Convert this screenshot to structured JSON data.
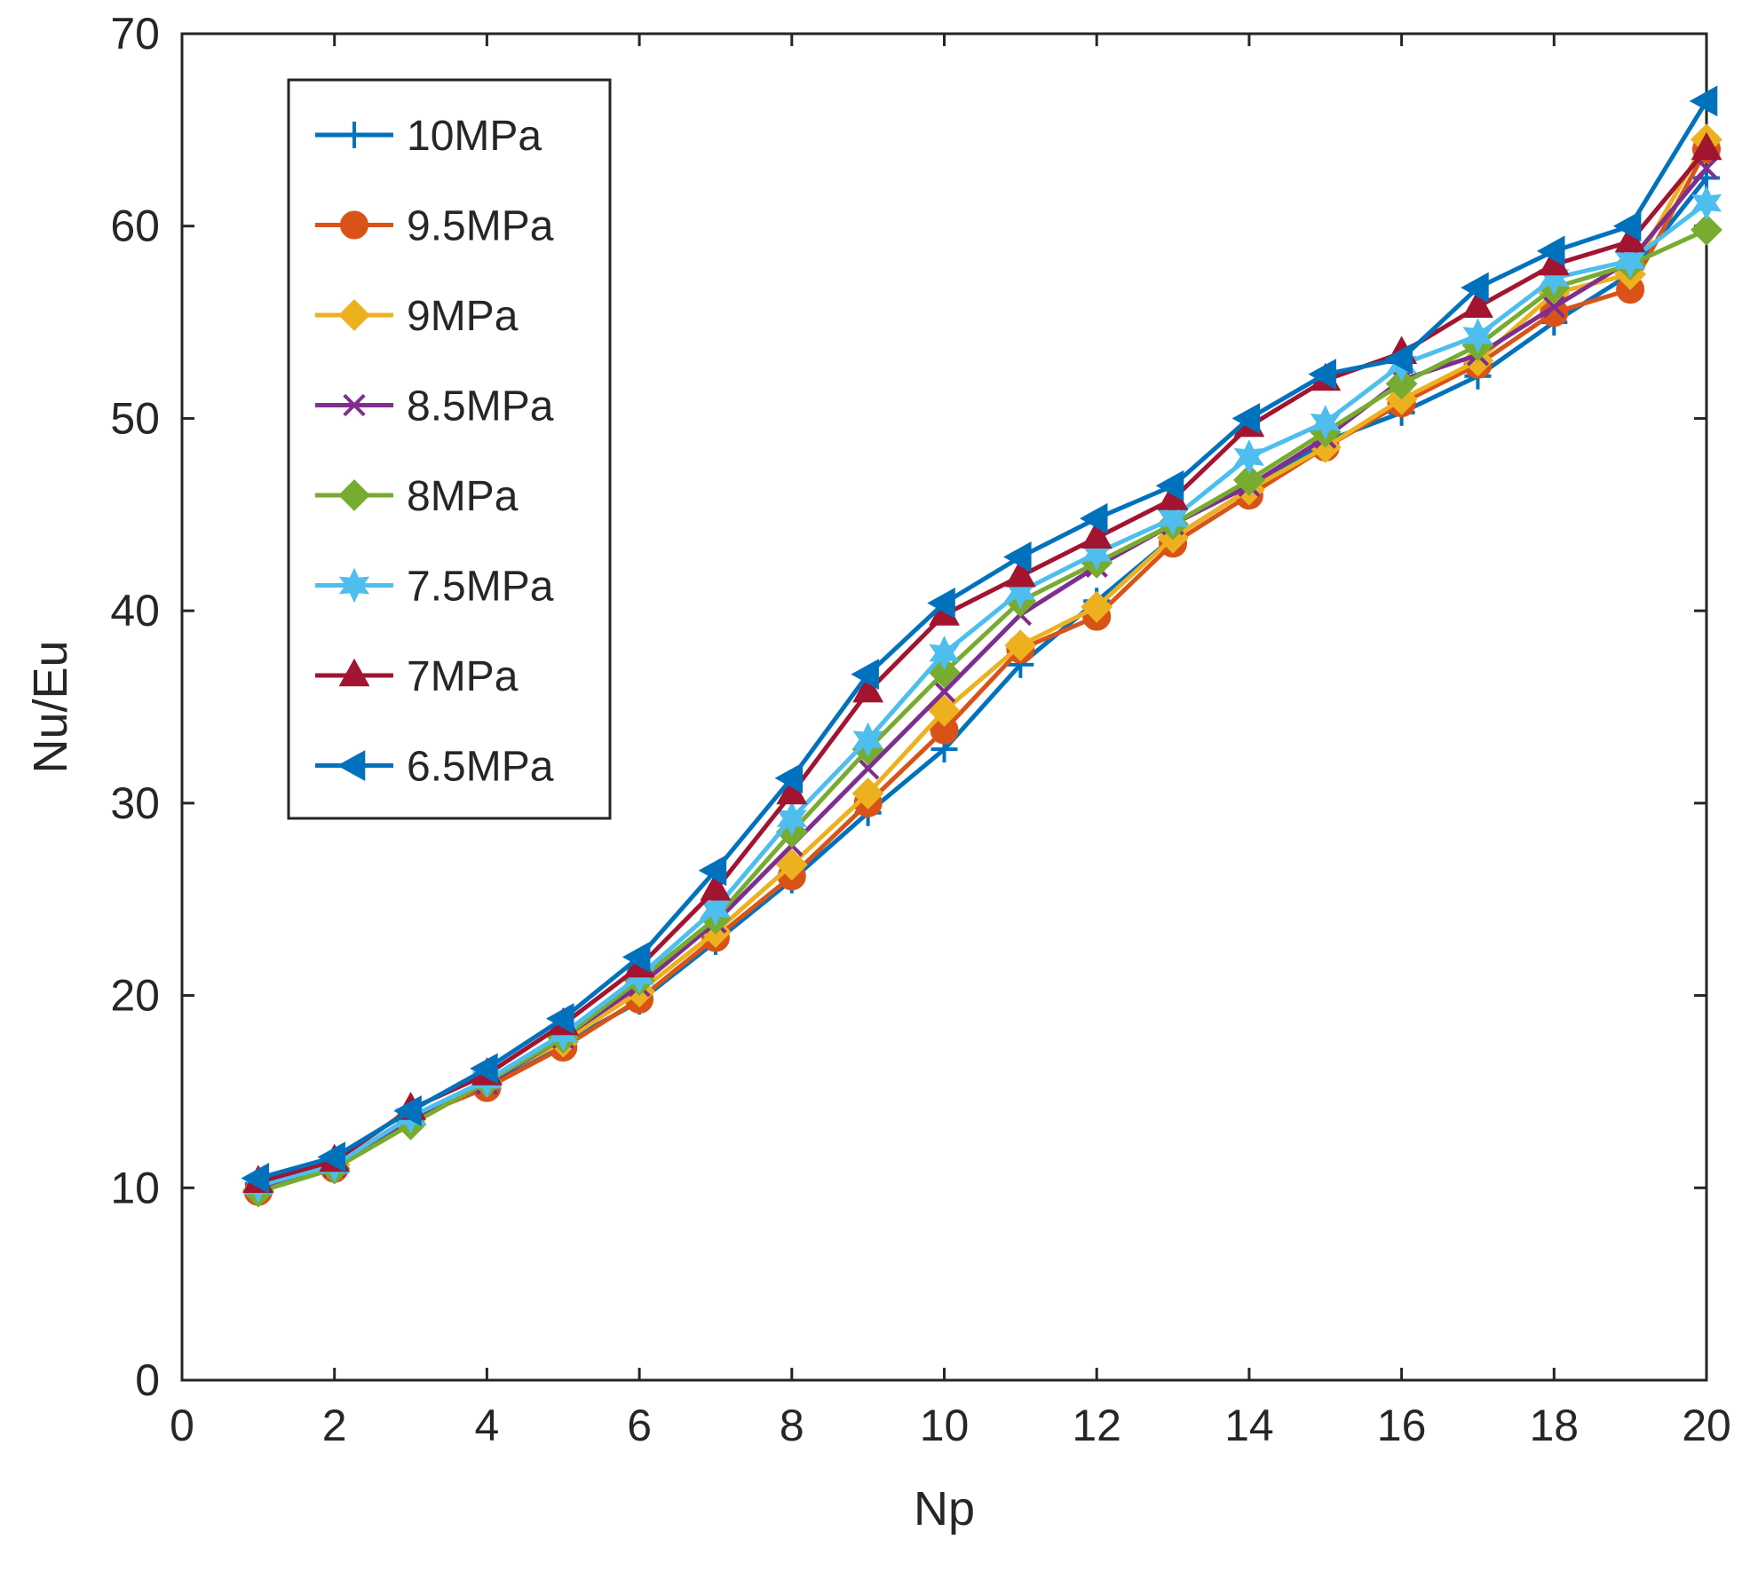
{
  "chart_data": {
    "type": "line",
    "title": "",
    "xlabel": "Np",
    "ylabel": "Nu/Eu",
    "xlim": [
      0,
      20
    ],
    "ylim": [
      0,
      70
    ],
    "xticks": [
      0,
      2,
      4,
      6,
      8,
      10,
      12,
      14,
      16,
      18,
      20
    ],
    "yticks": [
      0,
      10,
      20,
      30,
      40,
      50,
      60,
      70
    ],
    "grid": false,
    "legend_position": "top-left",
    "x": [
      1,
      2,
      3,
      4,
      5,
      6,
      7,
      8,
      9,
      10,
      11,
      12,
      13,
      14,
      15,
      16,
      17,
      18,
      19,
      20
    ],
    "series": [
      {
        "name": "10MPa",
        "color": "#0072BD",
        "marker": "plus",
        "values": [
          10.2,
          11.1,
          13.5,
          15.3,
          17.5,
          19.7,
          22.8,
          26.0,
          29.5,
          32.8,
          37.2,
          40.5,
          43.8,
          46.3,
          48.8,
          50.3,
          52.2,
          55.0,
          57.5,
          62.5
        ]
      },
      {
        "name": "9.5MPa",
        "color": "#D95319",
        "marker": "circle",
        "values": [
          9.8,
          11.0,
          13.6,
          15.2,
          17.3,
          19.8,
          23.0,
          26.2,
          30.0,
          33.8,
          38.0,
          39.7,
          43.5,
          46.0,
          48.5,
          50.8,
          52.8,
          55.5,
          56.7,
          64.0
        ]
      },
      {
        "name": "9MPa",
        "color": "#EDB120",
        "marker": "diamond",
        "values": [
          9.9,
          11.2,
          13.7,
          15.5,
          17.6,
          20.2,
          23.3,
          26.8,
          30.5,
          34.8,
          38.2,
          40.2,
          43.8,
          46.3,
          48.5,
          51.0,
          53.0,
          56.5,
          57.5,
          64.5
        ]
      },
      {
        "name": "8.5MPa",
        "color": "#7E2F8E",
        "marker": "x",
        "values": [
          10.0,
          11.1,
          13.6,
          15.4,
          17.8,
          20.5,
          23.8,
          27.8,
          31.8,
          35.8,
          39.8,
          42.3,
          44.5,
          46.5,
          49.0,
          52.0,
          53.3,
          55.8,
          58.2,
          63.0
        ]
      },
      {
        "name": "8MPa",
        "color": "#77AC30",
        "marker": "diamond",
        "values": [
          9.8,
          11.0,
          13.3,
          15.5,
          17.8,
          20.8,
          24.0,
          28.5,
          32.8,
          36.8,
          40.5,
          42.5,
          44.5,
          46.8,
          49.3,
          51.8,
          53.8,
          56.8,
          58.0,
          59.8
        ]
      },
      {
        "name": "7.5MPa",
        "color": "#4DBEEE",
        "marker": "hexagram",
        "values": [
          10.1,
          11.2,
          13.7,
          15.6,
          18.0,
          21.0,
          24.5,
          29.2,
          33.3,
          37.8,
          41.0,
          43.0,
          44.8,
          48.0,
          49.8,
          52.8,
          54.3,
          57.3,
          58.2,
          61.2
        ]
      },
      {
        "name": "7MPa",
        "color": "#A2142F",
        "marker": "triangle",
        "values": [
          10.3,
          11.4,
          14.1,
          15.9,
          18.5,
          21.5,
          25.5,
          30.5,
          35.8,
          39.8,
          41.8,
          43.8,
          45.8,
          49.6,
          52.0,
          53.4,
          55.8,
          58.0,
          59.2,
          64.0
        ]
      },
      {
        "name": "6.5MPa",
        "color": "#0072BD",
        "marker": "triangle-left",
        "values": [
          10.5,
          11.6,
          14.0,
          16.2,
          18.8,
          22.0,
          26.5,
          31.3,
          36.7,
          40.4,
          42.8,
          44.8,
          46.5,
          50.0,
          52.3,
          53.1,
          56.8,
          58.7,
          60.0,
          66.5
        ]
      }
    ]
  }
}
